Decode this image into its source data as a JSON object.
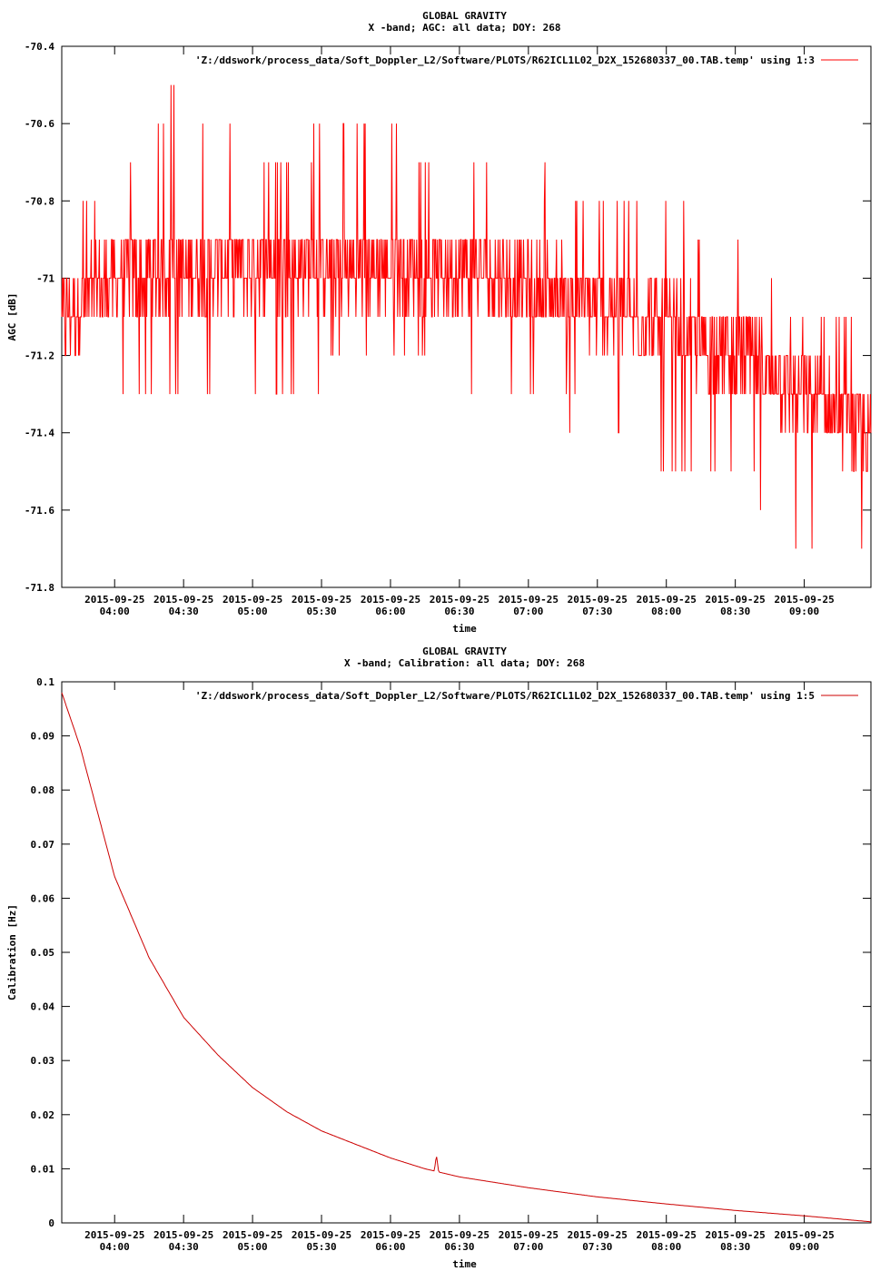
{
  "chart_data": [
    {
      "type": "line",
      "title": "GLOBAL GRAVITY",
      "subtitle": "X -band; AGC: all data; DOY: 268",
      "xlabel": "time",
      "ylabel": "AGC [dB]",
      "ylim": [
        -71.8,
        -70.4
      ],
      "yticks": [
        -70.4,
        -70.6,
        -70.8,
        -71,
        -71.2,
        -71.4,
        -71.6,
        -71.8
      ],
      "ytick_labels": [
        "-70.4",
        "-70.6",
        "-70.8",
        "-71",
        "-71.2",
        "-71.4",
        "-71.6",
        "-71.8"
      ],
      "xlim": [
        "2015-09-25 03:37",
        "2015-09-25 09:29"
      ],
      "xtick_dates": [
        "2015-09-25",
        "2015-09-25",
        "2015-09-25",
        "2015-09-25",
        "2015-09-25",
        "2015-09-25",
        "2015-09-25",
        "2015-09-25",
        "2015-09-25",
        "2015-09-25",
        "2015-09-25"
      ],
      "xtick_times": [
        "04:00",
        "04:30",
        "05:00",
        "05:30",
        "06:00",
        "06:30",
        "07:00",
        "07:30",
        "08:00",
        "08:30",
        "09:00"
      ],
      "legend": "top-right",
      "grid": false,
      "series": [
        {
          "name": "'Z:/ddswork/process_data/Soft_Doppler_L2/Software/PLOTS/R62ICL1L02_D2X_152680337_00.TAB.temp' using 1:3",
          "color": "#ff0000",
          "x": [
            "03:37",
            "04:00",
            "04:30",
            "05:00",
            "05:30",
            "06:00",
            "06:30",
            "07:00",
            "07:30",
            "08:00",
            "08:30",
            "09:00",
            "09:29"
          ],
          "y": [
            -71.1,
            -71.0,
            -70.97,
            -70.97,
            -70.97,
            -70.96,
            -70.98,
            -71.02,
            -71.07,
            -71.13,
            -71.19,
            -71.3,
            -71.4
          ],
          "noise_min": [
            -71.3,
            -71.3,
            -71.3,
            -71.3,
            -71.3,
            -71.2,
            -71.3,
            -71.3,
            -71.4,
            -71.5,
            -71.5,
            -71.7,
            -71.7
          ],
          "noise_max": [
            -70.8,
            -70.7,
            -70.5,
            -70.7,
            -70.6,
            -70.6,
            -70.7,
            -70.7,
            -70.8,
            -70.8,
            -70.9,
            -71.1,
            -71.1
          ]
        }
      ]
    },
    {
      "type": "line",
      "title": "GLOBAL GRAVITY",
      "subtitle": "X -band; Calibration: all data; DOY: 268",
      "xlabel": "time",
      "ylabel": "Calibration [Hz]",
      "ylim": [
        0,
        0.1
      ],
      "yticks": [
        0,
        0.01,
        0.02,
        0.03,
        0.04,
        0.05,
        0.06,
        0.07,
        0.08,
        0.09,
        0.1
      ],
      "ytick_labels": [
        "0",
        "0.01",
        "0.02",
        "0.03",
        "0.04",
        "0.05",
        "0.06",
        "0.07",
        "0.08",
        "0.09",
        "0.1"
      ],
      "xlim": [
        "2015-09-25 03:37",
        "2015-09-25 09:29"
      ],
      "xtick_dates": [
        "2015-09-25",
        "2015-09-25",
        "2015-09-25",
        "2015-09-25",
        "2015-09-25",
        "2015-09-25",
        "2015-09-25",
        "2015-09-25",
        "2015-09-25",
        "2015-09-25",
        "2015-09-25"
      ],
      "xtick_times": [
        "04:00",
        "04:30",
        "05:00",
        "05:30",
        "06:00",
        "06:30",
        "07:00",
        "07:30",
        "08:00",
        "08:30",
        "09:00"
      ],
      "legend": "top-right",
      "grid": false,
      "series": [
        {
          "name": "'Z:/ddswork/process_data/Soft_Doppler_L2/Software/PLOTS/R62ICL1L02_D2X_152680337_00.TAB.temp' using 1:5",
          "color": "#cc0000",
          "x": [
            "03:37",
            "03:45",
            "04:00",
            "04:15",
            "04:30",
            "04:45",
            "05:00",
            "05:15",
            "05:30",
            "05:45",
            "06:00",
            "06:15",
            "06:19",
            "06:20",
            "06:21",
            "06:30",
            "07:00",
            "07:30",
            "08:00",
            "08:30",
            "09:00",
            "09:29"
          ],
          "y": [
            0.098,
            0.088,
            0.064,
            0.049,
            0.038,
            0.031,
            0.025,
            0.0205,
            0.017,
            0.0145,
            0.012,
            0.01,
            0.0095,
            0.0125,
            0.0093,
            0.0085,
            0.0065,
            0.0048,
            0.0035,
            0.0023,
            0.0013,
            0.0002
          ]
        }
      ]
    }
  ]
}
